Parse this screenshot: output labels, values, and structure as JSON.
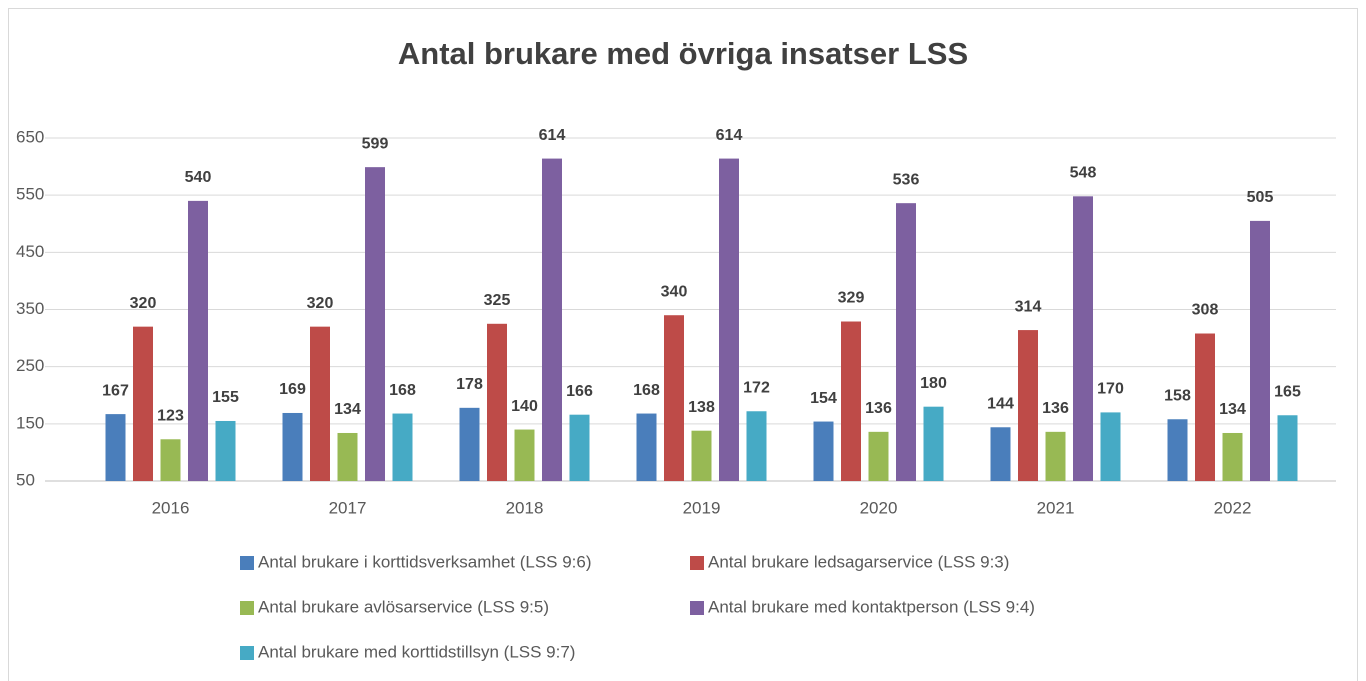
{
  "chart_data": {
    "type": "bar",
    "title": "Antal brukare med övriga insatser LSS",
    "categories": [
      "2016",
      "2017",
      "2018",
      "2019",
      "2020",
      "2021",
      "2022"
    ],
    "series": [
      {
        "name": "Antal brukare i korttidsverksamhet (LSS 9:6)",
        "color": "#4a7ebb",
        "values": [
          167,
          169,
          178,
          168,
          154,
          144,
          158
        ]
      },
      {
        "name": "Antal brukare ledsagarservice (LSS 9:3)",
        "color": "#be4b48",
        "values": [
          320,
          320,
          325,
          340,
          329,
          314,
          308
        ]
      },
      {
        "name": "Antal brukare avlösarservice (LSS 9:5)",
        "color": "#98b954",
        "values": [
          123,
          134,
          140,
          138,
          136,
          136,
          134
        ]
      },
      {
        "name": "Antal brukare med kontaktperson (LSS 9:4)",
        "color": "#7d60a0",
        "values": [
          540,
          599,
          614,
          614,
          536,
          548,
          505
        ]
      },
      {
        "name": "Antal brukare med korttidstillsyn (LSS 9:7)",
        "color": "#46aac5",
        "values": [
          155,
          168,
          166,
          172,
          180,
          170,
          165
        ]
      }
    ],
    "ylim": [
      50,
      650
    ],
    "yticks": [
      50,
      150,
      250,
      350,
      450,
      550,
      650
    ],
    "grid": true,
    "legend": "bottom"
  }
}
